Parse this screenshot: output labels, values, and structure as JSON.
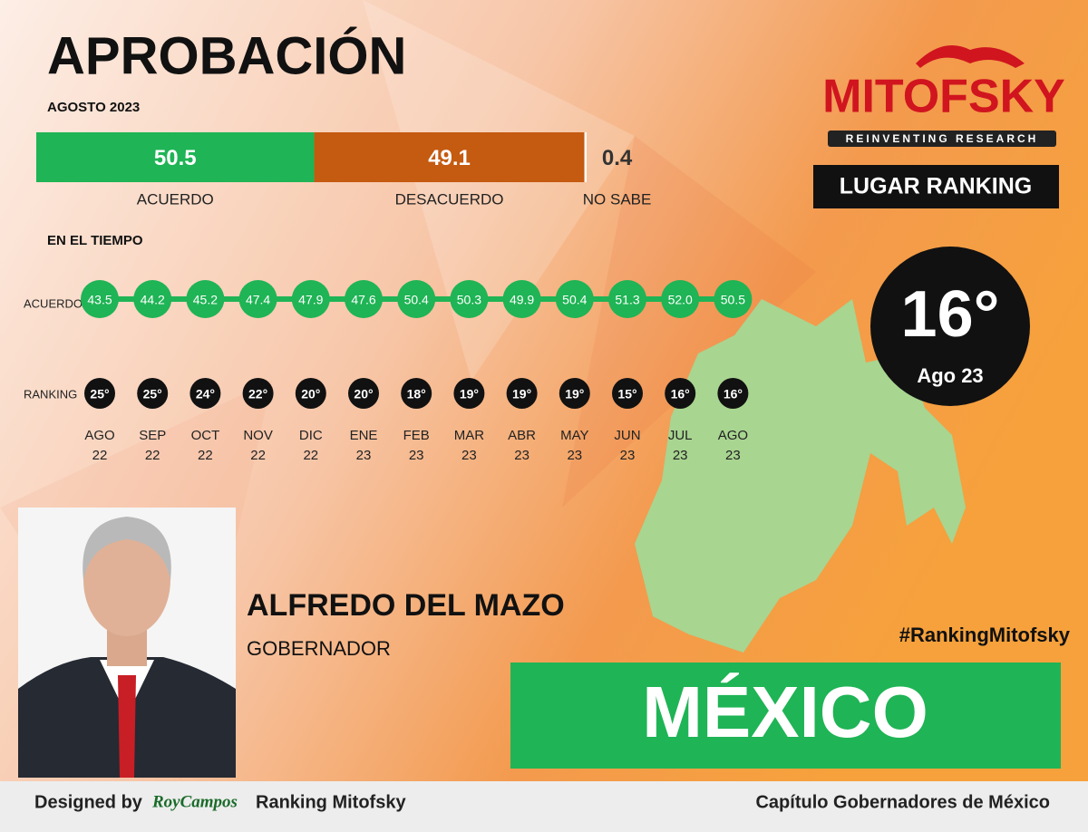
{
  "header": {
    "title": "APROBACIÓN",
    "subtitle": "AGOSTO 2023"
  },
  "approval": {
    "segments": [
      {
        "label": "ACUERDO",
        "value": 50.5,
        "color": "#1fb455"
      },
      {
        "label": "DESACUERDO",
        "value": 49.1,
        "color": "#c55a11"
      },
      {
        "label": "NO SABE",
        "value": 0.4,
        "color": "#ffffff"
      }
    ]
  },
  "timeline": {
    "title": "EN EL TIEMPO",
    "row_labels": [
      "ACUERDO",
      "RANKING"
    ],
    "periods": [
      {
        "month": "AGO",
        "year": "22",
        "acuerdo": "43.5",
        "ranking": "25°"
      },
      {
        "month": "SEP",
        "year": "22",
        "acuerdo": "44.2",
        "ranking": "25°"
      },
      {
        "month": "OCT",
        "year": "22",
        "acuerdo": "45.2",
        "ranking": "24°"
      },
      {
        "month": "NOV",
        "year": "22",
        "acuerdo": "47.4",
        "ranking": "22°"
      },
      {
        "month": "DIC",
        "year": "22",
        "acuerdo": "47.9",
        "ranking": "20°"
      },
      {
        "month": "ENE",
        "year": "23",
        "acuerdo": "47.6",
        "ranking": "20°"
      },
      {
        "month": "FEB",
        "year": "23",
        "acuerdo": "50.4",
        "ranking": "18°"
      },
      {
        "month": "MAR",
        "year": "23",
        "acuerdo": "50.3",
        "ranking": "19°"
      },
      {
        "month": "ABR",
        "year": "23",
        "acuerdo": "49.9",
        "ranking": "19°"
      },
      {
        "month": "MAY",
        "year": "23",
        "acuerdo": "50.4",
        "ranking": "19°"
      },
      {
        "month": "JUN",
        "year": "23",
        "acuerdo": "51.3",
        "ranking": "15°"
      },
      {
        "month": "JUL",
        "year": "23",
        "acuerdo": "52.0",
        "ranking": "16°"
      },
      {
        "month": "AGO",
        "year": "23",
        "acuerdo": "50.5",
        "ranking": "16°"
      }
    ]
  },
  "brand": {
    "logo": "MITOFSKY",
    "tagline": "REINVENTING RESEARCH",
    "ranking_label": "LUGAR RANKING",
    "ranking": "16°",
    "ranking_period": "Ago 23"
  },
  "person": {
    "name": "ALFREDO DEL MAZO",
    "role": "GOBERNADOR"
  },
  "hashtag": "#RankingMitofsky",
  "state": "MÉXICO",
  "footer": {
    "designed_by": "Designed by",
    "designer": "RoyCampos",
    "product": "Ranking Mitofsky",
    "chapter": "Capítulo Gobernadores de México"
  }
}
